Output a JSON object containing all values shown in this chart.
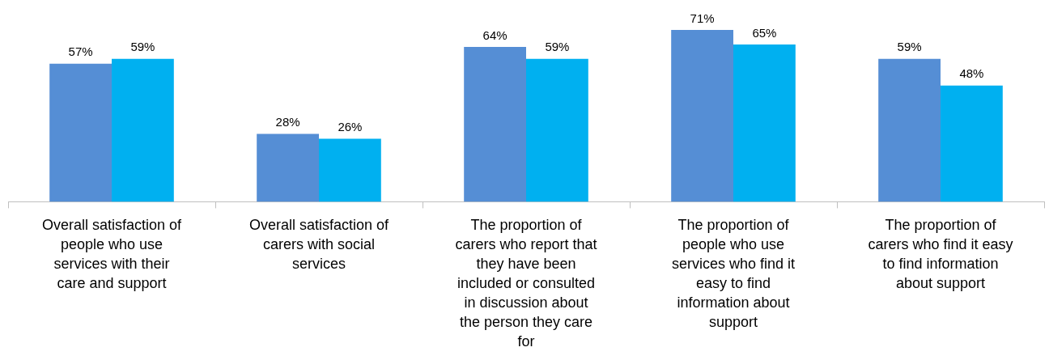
{
  "chart_data": {
    "type": "bar",
    "categories": [
      "Overall satisfaction of people who use services with their care and support",
      "Overall satisfaction of carers with social services",
      "The proportion of carers who report that they have been included or consulted in discussion about the person they care for",
      "The proportion of people who use services who find it easy to find information about support",
      "The proportion of carers who find it easy to find information about support"
    ],
    "series": [
      {
        "color": "#558ed5",
        "values": [
          57,
          28,
          64,
          71,
          59
        ],
        "value_labels": [
          "57%",
          "28%",
          "64%",
          "71%",
          "59%"
        ]
      },
      {
        "color": "#00b0f0",
        "values": [
          59,
          26,
          59,
          65,
          48
        ],
        "value_labels": [
          "59%",
          "26%",
          "59%",
          "65%",
          "48%"
        ]
      }
    ],
    "grid": false,
    "legend": false
  }
}
